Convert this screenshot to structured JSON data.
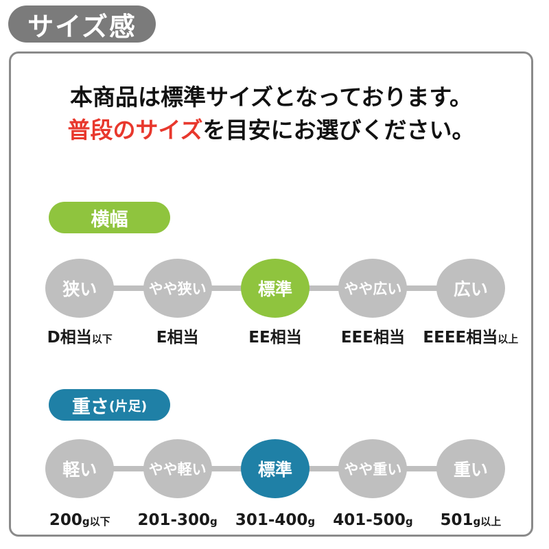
{
  "badge": {
    "label": "サイズ感"
  },
  "heading": {
    "line1": "本商品は標準サイズとなっております。",
    "line2_highlight": "普段のサイズ",
    "line2_rest": "を目安にお選びください。"
  },
  "colors": {
    "badge_gray": "#7b7b7b",
    "panel_border_gray": "#8a8a8a",
    "circle_gray": "#bfbfbf",
    "accent_green": "#8fc43e",
    "accent_blue": "#1f80a6",
    "highlight_red": "#e8382d",
    "text_black": "#1a1a1a"
  },
  "sections": [
    {
      "title": "横幅",
      "title_suffix": "",
      "accent_color": "#8fc43e",
      "selected": "標準",
      "steps": [
        {
          "circle_label": "狭い",
          "active": false,
          "value_main": "D相当",
          "value_small": "以下"
        },
        {
          "circle_label": "やや狭い",
          "active": false,
          "value_main": "E相当",
          "value_small": ""
        },
        {
          "circle_label": "標準",
          "active": true,
          "value_main": "EE相当",
          "value_small": ""
        },
        {
          "circle_label": "やや広い",
          "active": false,
          "value_main": "EEE相当",
          "value_small": ""
        },
        {
          "circle_label": "広い",
          "active": false,
          "value_main": "EEEE相当",
          "value_small": "以上"
        }
      ]
    },
    {
      "title": "重さ",
      "title_suffix": "(片足)",
      "accent_color": "#1f80a6",
      "selected": "標準",
      "steps": [
        {
          "circle_label": "軽い",
          "active": false,
          "value_main": "200",
          "value_small": "g以下"
        },
        {
          "circle_label": "やや軽い",
          "active": false,
          "value_main": "201-300",
          "value_small": "g"
        },
        {
          "circle_label": "標準",
          "active": true,
          "value_main": "301-400",
          "value_small": "g"
        },
        {
          "circle_label": "やや重い",
          "active": false,
          "value_main": "401-500",
          "value_small": "g"
        },
        {
          "circle_label": "重い",
          "active": false,
          "value_main": "501",
          "value_small": "g以上"
        }
      ]
    }
  ]
}
